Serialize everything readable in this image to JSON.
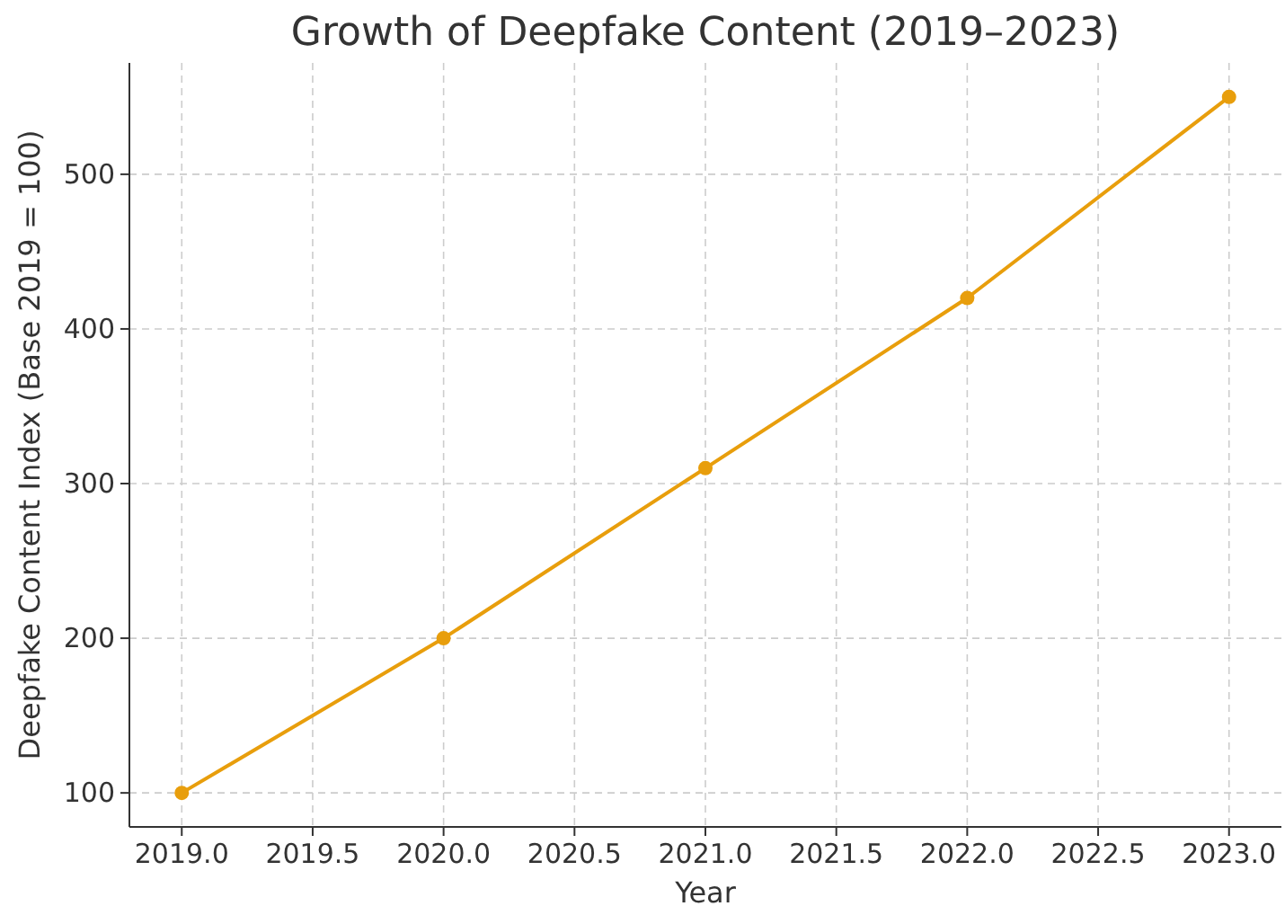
{
  "chart_data": {
    "type": "line",
    "title": "Growth of Deepfake Content (2019–2023)",
    "xlabel": "Year",
    "ylabel": "Deepfake Content Index (Base 2019 = 100)",
    "x": [
      2019,
      2020,
      2021,
      2022,
      2023
    ],
    "series": [
      {
        "color": "#e89e0c",
        "values": [
          100,
          200,
          310,
          420,
          550
        ]
      }
    ],
    "xlim": [
      2018.8,
      2023.2
    ],
    "xticks": [
      {
        "value": 2019,
        "label": "2019.0"
      },
      {
        "value": 2019.5,
        "label": "2019.5"
      },
      {
        "value": 2020,
        "label": "2020.0"
      },
      {
        "value": 2020.5,
        "label": "2020.5"
      },
      {
        "value": 2021,
        "label": "2021.0"
      },
      {
        "value": 2021.5,
        "label": "2021.5"
      },
      {
        "value": 2022,
        "label": "2022.0"
      },
      {
        "value": 2022.5,
        "label": "2022.5"
      },
      {
        "value": 2023,
        "label": "2023.0"
      }
    ],
    "ylim": [
      78,
      572
    ],
    "yticks": [
      100,
      200,
      300,
      400,
      500
    ],
    "grid": true,
    "marker": "circle",
    "line_style": "solid"
  }
}
